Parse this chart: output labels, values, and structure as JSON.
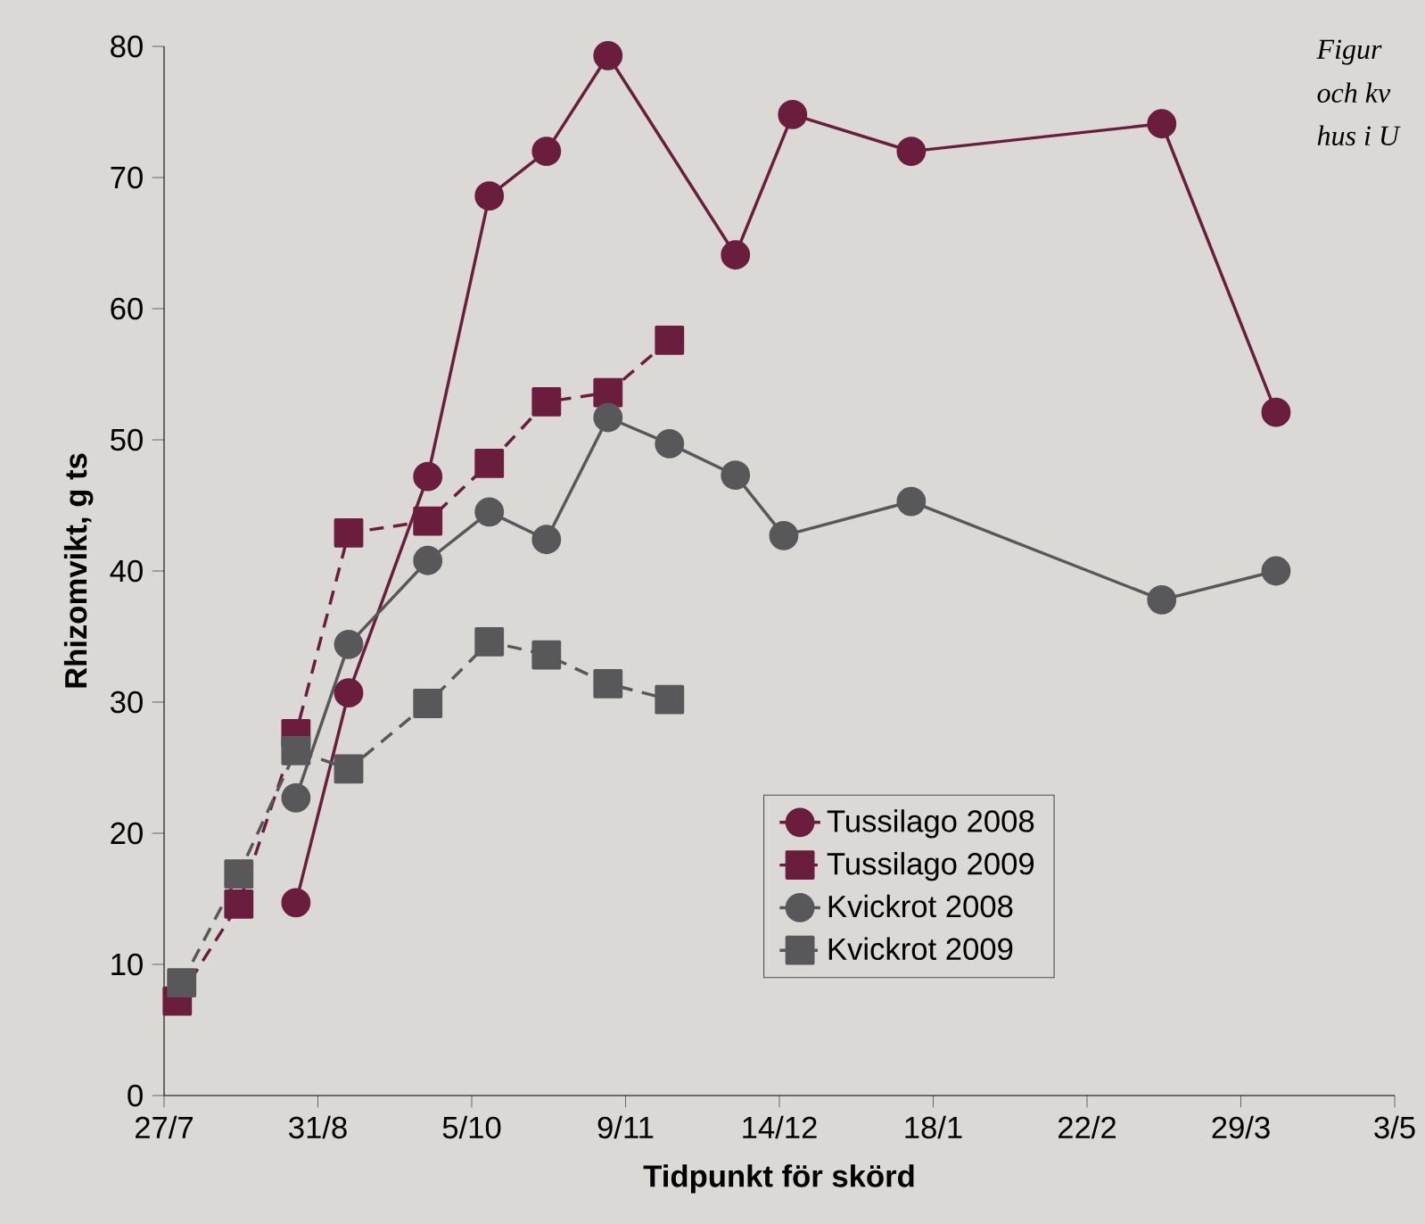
{
  "chart_data": {
    "type": "line",
    "xlabel": "Tidpunkt för skörd",
    "ylabel": "Rhizomvikt, g ts",
    "xlim": [
      "2008-07-27",
      "2009-05-03"
    ],
    "ylim": [
      0,
      80
    ],
    "xticks": [
      {
        "value": "2008-07-27",
        "label": "27/7"
      },
      {
        "value": "2008-08-31",
        "label": "31/8"
      },
      {
        "value": "2008-10-05",
        "label": "5/10"
      },
      {
        "value": "2008-11-09",
        "label": "9/11"
      },
      {
        "value": "2008-12-14",
        "label": "14/12"
      },
      {
        "value": "2009-01-18",
        "label": "18/1"
      },
      {
        "value": "2009-02-22",
        "label": "22/2"
      },
      {
        "value": "2009-03-29",
        "label": "29/3"
      },
      {
        "value": "2009-05-03",
        "label": "3/5"
      }
    ],
    "yticks": [
      0,
      10,
      20,
      30,
      40,
      50,
      60,
      70,
      80
    ],
    "legend": "bottom right",
    "annotations": [
      "Figur",
      "och kv",
      "hus i U"
    ],
    "series": [
      {
        "name": "Tussilago 2008",
        "color": "#6b1d3e",
        "marker": "circle",
        "line_style": "solid",
        "x": [
          "2008-08-26",
          "2008-09-07",
          "2008-09-25",
          "2008-10-09",
          "2008-10-22",
          "2008-11-05",
          "2008-12-04",
          "2008-12-17",
          "2009-01-13",
          "2009-03-11",
          "2009-04-06"
        ],
        "values": [
          14.7,
          30.7,
          47.2,
          68.6,
          72.0,
          79.3,
          64.1,
          74.8,
          72.0,
          74.1,
          52.1
        ]
      },
      {
        "name": "Tussilago 2009",
        "color": "#6b1d3e",
        "marker": "square",
        "line_style": "dashed",
        "x": [
          "2008-07-30",
          "2008-08-13",
          "2008-08-26",
          "2008-09-07",
          "2008-09-25",
          "2008-10-09",
          "2008-10-22",
          "2008-11-05",
          "2008-11-19"
        ],
        "values": [
          7.2,
          14.6,
          27.6,
          42.9,
          43.8,
          48.2,
          52.9,
          53.6,
          57.6
        ]
      },
      {
        "name": "Kvickrot 2008",
        "color": "#58585a",
        "marker": "circle",
        "line_style": "solid",
        "x": [
          "2008-08-26",
          "2008-09-07",
          "2008-09-25",
          "2008-10-09",
          "2008-10-22",
          "2008-11-05",
          "2008-11-19",
          "2008-12-04",
          "2008-12-15",
          "2009-01-13",
          "2009-03-11",
          "2009-04-06"
        ],
        "values": [
          22.7,
          34.4,
          40.8,
          44.5,
          42.4,
          51.7,
          49.7,
          47.3,
          42.7,
          45.3,
          37.8,
          40.0
        ]
      },
      {
        "name": "Kvickrot 2009",
        "color": "#58585a",
        "marker": "square",
        "line_style": "dashed",
        "x": [
          "2008-07-31",
          "2008-08-13",
          "2008-08-26",
          "2008-09-07",
          "2008-09-25",
          "2008-10-09",
          "2008-10-22",
          "2008-11-05",
          "2008-11-19"
        ],
        "values": [
          8.6,
          16.9,
          26.3,
          24.9,
          29.9,
          34.6,
          33.6,
          31.4,
          30.2
        ]
      }
    ]
  }
}
